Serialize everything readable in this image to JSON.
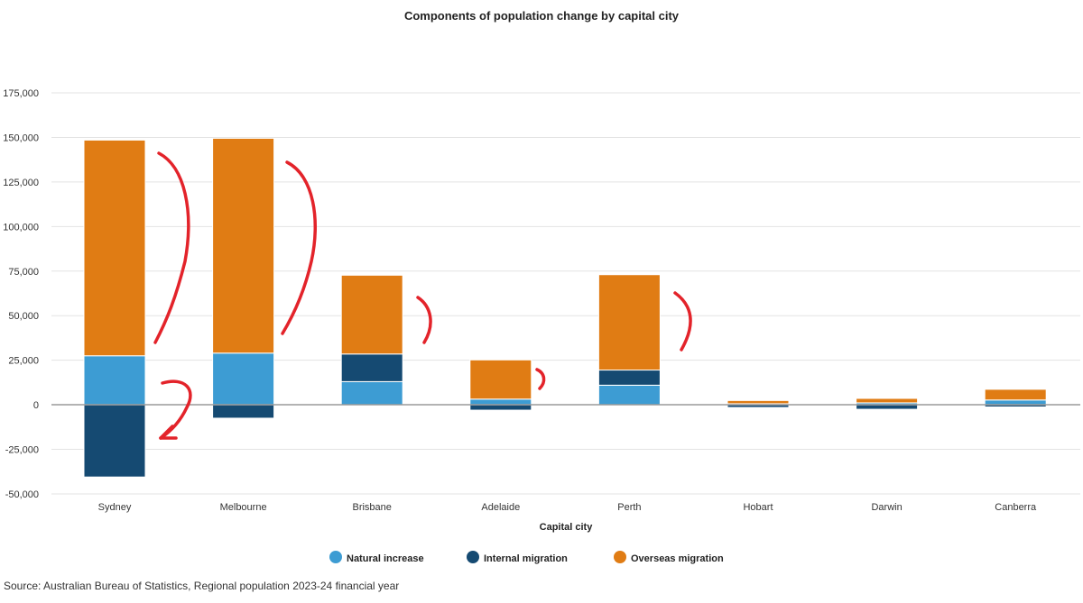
{
  "chart_data": {
    "type": "bar",
    "stacked": true,
    "title": "Components of population change by capital city",
    "xlabel": "Capital city",
    "ylabel": "",
    "categories": [
      "Sydney",
      "Melbourne",
      "Brisbane",
      "Adelaide",
      "Perth",
      "Hobart",
      "Darwin",
      "Canberra"
    ],
    "series": [
      {
        "name": "Natural increase",
        "color": "#3d9cd3",
        "values": [
          27500,
          29000,
          13000,
          3200,
          11000,
          600,
          1100,
          2700
        ]
      },
      {
        "name": "Internal migration",
        "color": "#154a72",
        "values": [
          -40500,
          -7500,
          15500,
          -3000,
          8500,
          -1500,
          -2500,
          -1200
        ]
      },
      {
        "name": "Overseas migration",
        "color": "#e07c14",
        "values": [
          121000,
          120500,
          44200,
          22000,
          53500,
          1800,
          2500,
          6000
        ]
      }
    ],
    "ylim": [
      -50000,
      175000
    ],
    "yticks": [
      -50000,
      -25000,
      0,
      25000,
      50000,
      75000,
      100000,
      125000,
      150000,
      175000
    ],
    "ytick_labels": [
      "-50,000",
      "-25,000",
      "0",
      "25,000",
      "50,000",
      "75,000",
      "100,000",
      "125,000",
      "150,000",
      "175,000"
    ],
    "grid": true,
    "legend_position": "bottom",
    "annotations": "hand-drawn red arrows beside bars"
  },
  "source": "Source: Australian Bureau of Statistics, Regional population 2023-24 financial year"
}
